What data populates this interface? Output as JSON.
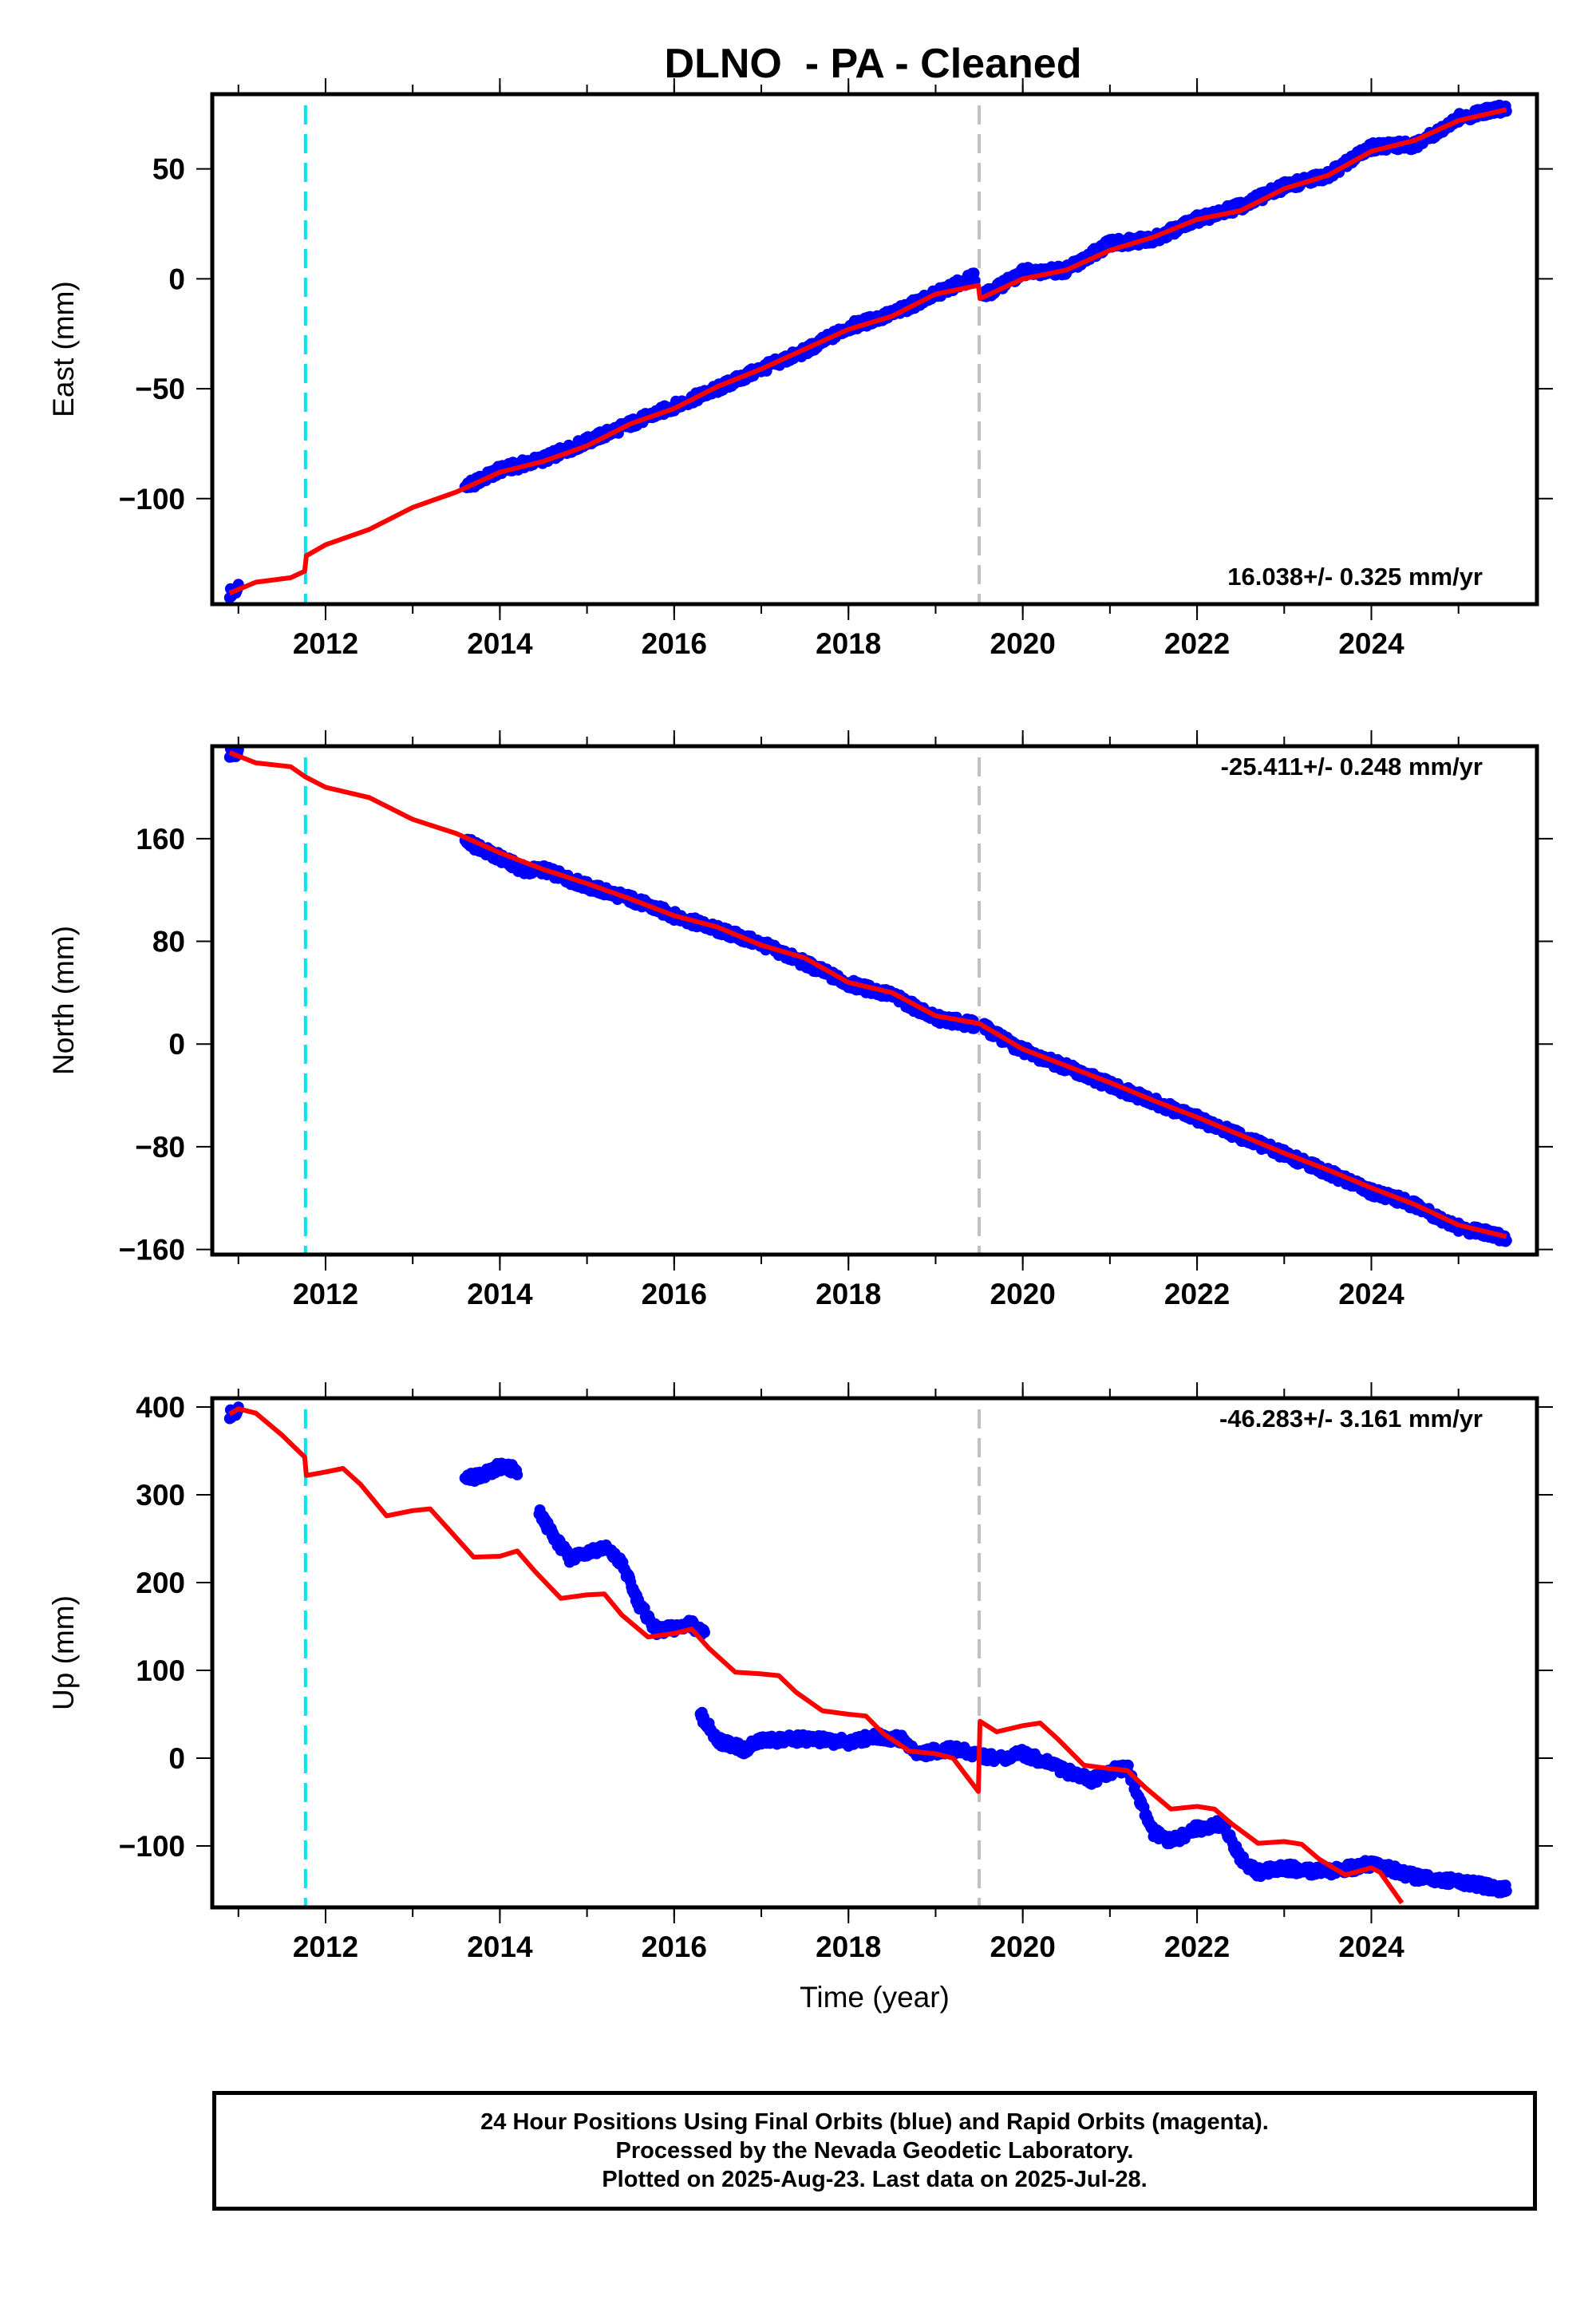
{
  "title": "DLNO  - PA - Cleaned",
  "xlabel": "Time (year)",
  "colors": {
    "data": "#0000ff",
    "model": "#ff0000",
    "antenna_change": "#00e5ee",
    "equipment_change": "#c0c0c0",
    "frame": "#000000"
  },
  "footer": {
    "line1": "24 Hour Positions Using Final Orbits (blue) and Rapid Orbits (magenta).",
    "line2": "Processed by the Nevada Geodetic Laboratory.",
    "line3": "Plotted on 2025-Aug-23. Last data on 2025-Jul-28."
  },
  "chart_data": [
    {
      "type": "scatter",
      "component": "East",
      "ylabel": "East (mm)",
      "rate": "16.038+/- 0.325 mm/yr",
      "rate_position": "bottom-right",
      "xlim": [
        2010.7,
        2025.9
      ],
      "ylim": [
        -148,
        84
      ],
      "xticks": [
        2012,
        2014,
        2016,
        2018,
        2020,
        2022,
        2024
      ],
      "yticks": [
        -100,
        -50,
        0,
        50
      ],
      "events": [
        {
          "x": 2011.77,
          "kind": "antenna_change"
        },
        {
          "x": 2019.5,
          "kind": "equipment_change"
        }
      ],
      "data_segments": [
        {
          "x": [
            2010.9,
            2011.0
          ],
          "y": [
            -143,
            -141
          ]
        },
        {
          "x": [
            2013.6,
            2014.0,
            2014.5,
            2015.0,
            2015.5,
            2016.0,
            2016.5,
            2017.0,
            2017.5,
            2018.0,
            2018.5,
            2019.0,
            2019.45
          ],
          "y": [
            -95,
            -87,
            -82,
            -74,
            -66,
            -58,
            -50,
            -41,
            -33,
            -22,
            -16,
            -7,
            1
          ]
        },
        {
          "x": [
            2019.55,
            2020.0,
            2020.5,
            2021.0,
            2021.5,
            2022.0,
            2022.5,
            2023.0,
            2023.5,
            2024.0,
            2024.5,
            2025.0,
            2025.55
          ],
          "y": [
            -8,
            3,
            4,
            16,
            18,
            27,
            33,
            42,
            47,
            60,
            61,
            73,
            78
          ]
        }
      ],
      "model": {
        "x": [
          2010.9,
          2011.2,
          2011.6,
          2011.76,
          2011.78,
          2012.0,
          2012.5,
          2013.0,
          2013.5,
          2014.0,
          2014.5,
          2015.0,
          2015.5,
          2016.0,
          2016.5,
          2017.0,
          2017.5,
          2018.0,
          2018.5,
          2019.0,
          2019.49,
          2019.51,
          2020.0,
          2020.5,
          2021.0,
          2021.5,
          2022.0,
          2022.5,
          2023.0,
          2023.5,
          2024.0,
          2024.5,
          2025.0,
          2025.55
        ],
        "y": [
          -143,
          -138,
          -136,
          -133,
          -126,
          -121,
          -114,
          -104,
          -97,
          -88,
          -83,
          -76,
          -66,
          -59,
          -49,
          -41,
          -32,
          -23,
          -17,
          -7,
          -3,
          -9,
          0,
          4,
          13,
          19,
          27,
          31,
          41,
          47,
          58,
          63,
          72,
          77
        ]
      }
    },
    {
      "type": "scatter",
      "component": "North",
      "ylabel": "North (mm)",
      "rate": "-25.411+/- 0.248 mm/yr",
      "rate_position": "top-right",
      "xlim": [
        2010.7,
        2025.9
      ],
      "ylim": [
        -164,
        232
      ],
      "xticks": [
        2012,
        2014,
        2016,
        2018,
        2020,
        2022,
        2024
      ],
      "yticks": [
        -160,
        -80,
        0,
        80,
        160
      ],
      "events": [
        {
          "x": 2011.77,
          "kind": "antenna_change"
        },
        {
          "x": 2019.5,
          "kind": "equipment_change"
        }
      ],
      "data_segments": [
        {
          "x": [
            2010.9,
            2011.0
          ],
          "y": [
            227,
            226
          ]
        },
        {
          "x": [
            2013.6,
            2014.0,
            2014.3,
            2014.5,
            2015.0,
            2015.5,
            2016.0,
            2016.5,
            2017.0,
            2017.5,
            2018.0,
            2018.5,
            2019.0,
            2019.45
          ],
          "y": [
            158,
            145,
            135,
            136,
            123,
            113,
            100,
            89,
            78,
            63,
            47,
            38,
            20,
            15
          ]
        },
        {
          "x": [
            2019.55,
            2020.0,
            2020.5,
            2021.0,
            2021.5,
            2022.0,
            2022.5,
            2023.0,
            2023.5,
            2024.0,
            2024.5,
            2025.0,
            2025.55
          ],
          "y": [
            13,
            -5,
            -18,
            -32,
            -45,
            -58,
            -72,
            -86,
            -100,
            -115,
            -125,
            -143,
            -151
          ]
        }
      ],
      "model": {
        "x": [
          2010.9,
          2011.2,
          2011.6,
          2011.77,
          2012.0,
          2012.5,
          2013.0,
          2013.5,
          2014.0,
          2014.5,
          2015.0,
          2015.5,
          2016.0,
          2016.5,
          2017.0,
          2017.5,
          2018.0,
          2018.5,
          2019.0,
          2019.5,
          2020.0,
          2020.5,
          2021.0,
          2021.5,
          2022.0,
          2022.5,
          2023.0,
          2023.5,
          2024.0,
          2024.5,
          2025.0,
          2025.55
        ],
        "y": [
          227,
          219,
          216,
          208,
          200,
          192,
          175,
          164,
          149,
          136,
          125,
          113,
          100,
          91,
          77,
          67,
          48,
          40,
          22,
          16,
          -4,
          -17,
          -30,
          -44,
          -57,
          -71,
          -85,
          -98,
          -112,
          -125,
          -141,
          -150
        ]
      }
    },
    {
      "type": "scatter",
      "component": "Up",
      "ylabel": "Up (mm)",
      "rate": "-46.283+/- 3.161 mm/yr",
      "rate_position": "top-right",
      "xlim": [
        2010.7,
        2025.9
      ],
      "ylim": [
        -170,
        410
      ],
      "xticks": [
        2012,
        2014,
        2016,
        2018,
        2020,
        2022,
        2024
      ],
      "yticks": [
        -100,
        0,
        100,
        200,
        300,
        400
      ],
      "events": [
        {
          "x": 2011.77,
          "kind": "antenna_change"
        },
        {
          "x": 2019.5,
          "kind": "equipment_change"
        }
      ],
      "data_segments": [
        {
          "x": [
            2010.9,
            2011.0
          ],
          "y": [
            392,
            395
          ]
        },
        {
          "x": [
            2013.6,
            2013.8,
            2014.0,
            2014.2
          ],
          "y": [
            318,
            322,
            332,
            328
          ]
        },
        {
          "x": [
            2014.45,
            2014.6,
            2014.8,
            2015.0,
            2015.2,
            2015.4,
            2015.6,
            2015.8,
            2016.0,
            2016.2,
            2016.35
          ],
          "y": [
            280,
            255,
            228,
            235,
            240,
            222,
            175,
            145,
            148,
            153,
            140
          ]
        },
        {
          "x": [
            2016.3,
            2016.5,
            2016.8,
            2017.0,
            2017.5,
            2018.0,
            2018.3,
            2018.6,
            2018.8,
            2019.0,
            2019.2,
            2019.45
          ],
          "y": [
            50,
            20,
            10,
            20,
            22,
            18,
            25,
            22,
            5,
            8,
            10,
            5
          ]
        },
        {
          "x": [
            2019.55,
            2019.8,
            2020.0,
            2020.3,
            2020.5,
            2020.8,
            2021.0,
            2021.2,
            2021.35,
            2021.5,
            2021.7,
            2022.0,
            2022.3,
            2022.5,
            2022.7,
            2023.0,
            2023.5,
            2024.0,
            2024.5,
            2025.0,
            2025.55
          ],
          "y": [
            2,
            0,
            5,
            -5,
            -15,
            -25,
            -15,
            -10,
            -50,
            -85,
            -95,
            -80,
            -75,
            -115,
            -130,
            -125,
            -130,
            -120,
            -135,
            -140,
            -150
          ]
        }
      ],
      "model": {
        "x": [
          2010.9,
          2011.0,
          2011.2,
          2011.5,
          2011.76,
          2011.78,
          2012.0,
          2012.2,
          2012.4,
          2012.7,
          2013.0,
          2013.2,
          2013.4,
          2013.7,
          2014.0,
          2014.2,
          2014.4,
          2014.7,
          2015.0,
          2015.2,
          2015.4,
          2015.7,
          2016.0,
          2016.2,
          2016.4,
          2016.7,
          2017.0,
          2017.2,
          2017.4,
          2017.7,
          2018.0,
          2018.2,
          2018.4,
          2018.7,
          2019.0,
          2019.2,
          2019.49,
          2019.51,
          2019.7,
          2020.0,
          2020.2,
          2020.4,
          2020.7,
          2021.0,
          2021.2,
          2021.4,
          2021.7,
          2022.0,
          2022.2,
          2022.4,
          2022.7,
          2023.0,
          2023.2,
          2023.4,
          2023.7,
          2024.0,
          2024.1,
          2024.35
        ],
        "y": [
          392,
          398,
          393,
          368,
          343,
          322,
          326,
          330,
          312,
          276,
          282,
          284,
          262,
          229,
          230,
          236,
          213,
          182,
          186,
          187,
          163,
          138,
          142,
          147,
          125,
          98,
          96,
          94,
          75,
          54,
          50,
          48,
          28,
          8,
          5,
          0,
          -38,
          42,
          30,
          37,
          40,
          22,
          -8,
          -12,
          -14,
          -33,
          -58,
          -55,
          -58,
          -75,
          -97,
          -95,
          -98,
          -115,
          -133,
          -125,
          -130,
          -165
        ]
      }
    }
  ]
}
